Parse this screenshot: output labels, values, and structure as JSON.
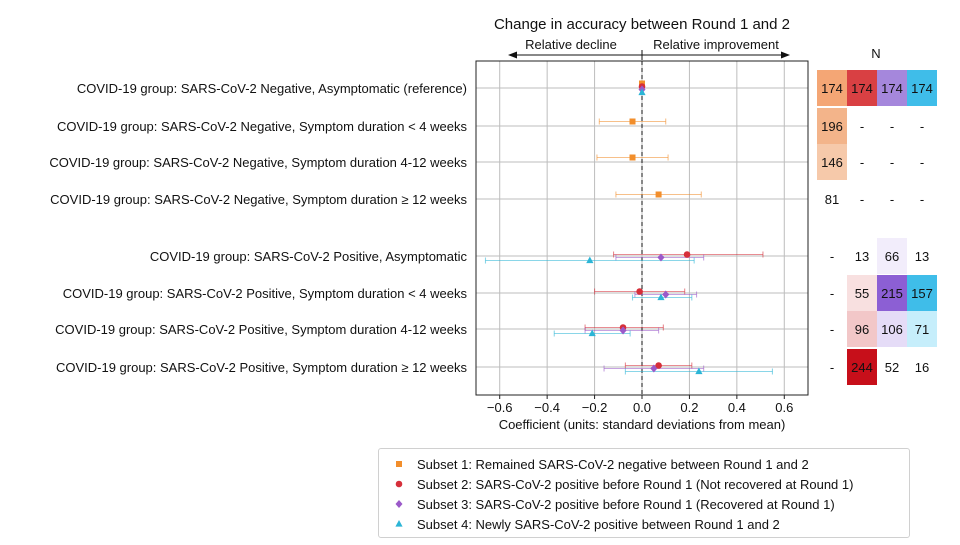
{
  "chart_data": {
    "type": "scatter",
    "title": "Change in accuracy between Round 1 and 2",
    "direction_labels": {
      "left": "Relative decline",
      "right": "Relative improvement"
    },
    "xlabel": "Coefficient (units: standard deviations from mean)",
    "xlim": [
      -0.7,
      0.7
    ],
    "xticks": [
      -0.6,
      -0.4,
      -0.2,
      0.0,
      0.2,
      0.4,
      0.6
    ],
    "xtick_labels": [
      "−0.6",
      "−0.4",
      "−0.2",
      "0.0",
      "0.2",
      "0.4",
      "0.6"
    ],
    "grid": true,
    "reference_line": 0,
    "legend_position": "bottom",
    "categories": [
      "COVID-19 group: SARS-CoV-2 Negative, Asymptomatic (reference)",
      "COVID-19 group: SARS-CoV-2 Negative, Symptom duration < 4 weeks",
      "COVID-19 group: SARS-CoV-2 Negative, Symptom duration 4-12 weeks",
      "COVID-19 group: SARS-CoV-2 Negative, Symptom duration ≥ 12 weeks",
      "COVID-19 group: SARS-CoV-2 Positive, Asymptomatic",
      "COVID-19 group: SARS-CoV-2 Positive, Symptom duration < 4 weeks",
      "COVID-19 group: SARS-CoV-2 Positive, Symptom duration 4-12 weeks",
      "COVID-19 group: SARS-CoV-2 Positive, Symptom duration ≥ 12 weeks"
    ],
    "series": [
      {
        "name": "Subset 1: Remained SARS-CoV-2 negative between Round 1 and 2",
        "color": "#f28e2b",
        "marker": "square",
        "points": [
          {
            "cat": 0,
            "x": 0.0,
            "lo": 0.0,
            "hi": 0.0
          },
          {
            "cat": 1,
            "x": -0.04,
            "lo": -0.18,
            "hi": 0.1
          },
          {
            "cat": 2,
            "x": -0.04,
            "lo": -0.19,
            "hi": 0.11
          },
          {
            "cat": 3,
            "x": 0.07,
            "lo": -0.11,
            "hi": 0.25
          }
        ]
      },
      {
        "name": "Subset 2: SARS-CoV-2 positive before Round 1 (Not recovered at Round 1)",
        "color": "#d62f3a",
        "marker": "circle",
        "points": [
          {
            "cat": 0,
            "x": 0.0,
            "lo": 0.0,
            "hi": 0.0
          },
          {
            "cat": 4,
            "x": 0.19,
            "lo": -0.12,
            "hi": 0.51
          },
          {
            "cat": 5,
            "x": -0.01,
            "lo": -0.2,
            "hi": 0.18
          },
          {
            "cat": 6,
            "x": -0.08,
            "lo": -0.24,
            "hi": 0.09
          },
          {
            "cat": 7,
            "x": 0.07,
            "lo": -0.07,
            "hi": 0.21
          }
        ]
      },
      {
        "name": "Subset 3: SARS-CoV-2 positive before Round 1 (Recovered at Round 1)",
        "color": "#9b59c9",
        "marker": "diamond",
        "points": [
          {
            "cat": 0,
            "x": 0.0,
            "lo": 0.0,
            "hi": 0.0
          },
          {
            "cat": 4,
            "x": 0.08,
            "lo": -0.11,
            "hi": 0.26
          },
          {
            "cat": 5,
            "x": 0.1,
            "lo": -0.03,
            "hi": 0.23
          },
          {
            "cat": 6,
            "x": -0.08,
            "lo": -0.24,
            "hi": 0.07
          },
          {
            "cat": 7,
            "x": 0.05,
            "lo": -0.16,
            "hi": 0.26
          }
        ]
      },
      {
        "name": "Subset 4: Newly SARS-CoV-2 positive between Round 1 and 2",
        "color": "#2cb5d6",
        "marker": "triangle",
        "points": [
          {
            "cat": 0,
            "x": 0.0,
            "lo": 0.0,
            "hi": 0.0
          },
          {
            "cat": 4,
            "x": -0.22,
            "lo": -0.66,
            "hi": 0.22
          },
          {
            "cat": 5,
            "x": 0.08,
            "lo": -0.04,
            "hi": 0.21
          },
          {
            "cat": 6,
            "x": -0.21,
            "lo": -0.37,
            "hi": -0.05
          },
          {
            "cat": 7,
            "x": 0.24,
            "lo": -0.07,
            "hi": 0.55
          }
        ]
      }
    ],
    "n_table": {
      "title": "N",
      "rows": [
        [
          "174",
          "174",
          "174",
          "174"
        ],
        [
          "196",
          "-",
          "-",
          "-"
        ],
        [
          "146",
          "-",
          "-",
          "-"
        ],
        [
          "81",
          "-",
          "-",
          "-"
        ],
        [
          "-",
          "13",
          "66",
          "13"
        ],
        [
          "-",
          "55",
          "215",
          "157"
        ],
        [
          "-",
          "96",
          "106",
          "71"
        ],
        [
          "-",
          "244",
          "52",
          "16"
        ]
      ],
      "colors": [
        [
          "#f4a675",
          "#d94043",
          "#a587dc",
          "#3fbde9"
        ],
        [
          "#f3b48a",
          "#ffffff",
          "#ffffff",
          "#ffffff"
        ],
        [
          "#f6c9aa",
          "#ffffff",
          "#ffffff",
          "#ffffff"
        ],
        [
          "#ffffff",
          "#ffffff",
          "#ffffff",
          "#ffffff"
        ],
        [
          "#ffffff",
          "#ffffff",
          "#f2edfb",
          "#ffffff"
        ],
        [
          "#ffffff",
          "#f8e0e0",
          "#8c5fd4",
          "#3fbde9"
        ],
        [
          "#ffffff",
          "#f2c7c8",
          "#e5dcf7",
          "#c6eefb"
        ],
        [
          "#ffffff",
          "#c70f1a",
          "#ffffff",
          "#ffffff"
        ]
      ]
    }
  }
}
